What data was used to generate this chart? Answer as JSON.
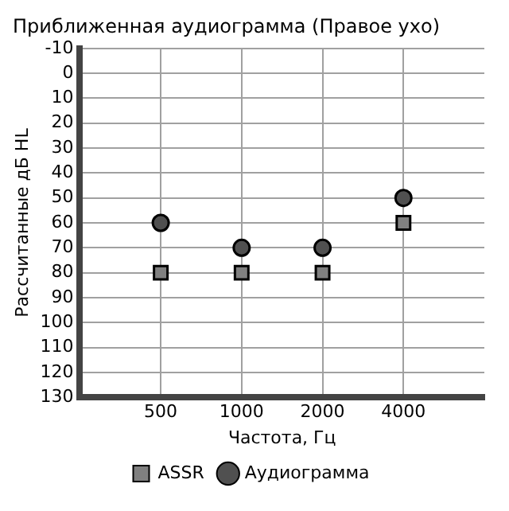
{
  "chart_data": {
    "type": "scatter",
    "title": "Приближенная аудиограмма (Правое ухо)",
    "xlabel": "Частота, Гц",
    "ylabel": "Рассчитанные дБ HL",
    "categories": [
      null,
      "500",
      "1000",
      "2000",
      "4000",
      null
    ],
    "series": [
      {
        "name": "ASSR",
        "color": "#808080",
        "marker": "square",
        "values": [
          null,
          80,
          80,
          80,
          60,
          null
        ]
      },
      {
        "name": "Аудиограмма",
        "color": "#505050",
        "marker": "circle",
        "values": [
          null,
          60,
          70,
          70,
          50,
          null
        ]
      }
    ],
    "ylim": [
      130,
      -10
    ],
    "yticks": [
      -10,
      0,
      10,
      20,
      30,
      40,
      50,
      60,
      70,
      80,
      90,
      100,
      110,
      120,
      130
    ],
    "grid": true,
    "legend": "bottom"
  }
}
